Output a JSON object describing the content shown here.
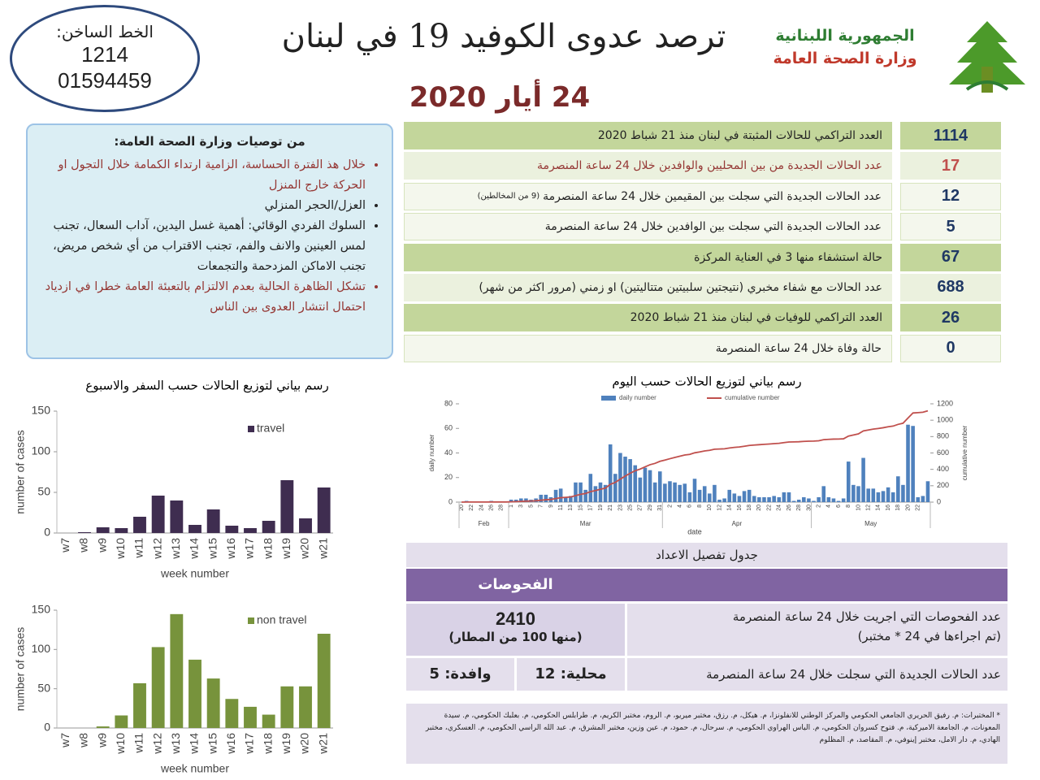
{
  "header": {
    "hotline_label": "الخط الساخن:",
    "hotline_numbers": [
      "1214",
      "01594459"
    ],
    "title": "ترصد عدوى الكوفيد 19 في لبنان",
    "date": "24 أيار 2020",
    "logo_lines": [
      "الجمهورية اللبنانية",
      "وزارة الصحة العامة"
    ]
  },
  "recommendations": {
    "title": "من توصيات وزارة الصحة العامة:",
    "items": [
      "خلال هذ الفترة الحساسة، الزامية ارتداء الكمامة خلال التجول او الحركة خارج المنزل",
      "العزل/الحجر المنزلي",
      "السلوك الفردي الوقائي: أهمية غسل اليدين، آداب السعال، تجنب لمس العينين والانف والفم، تجنب الاقتراب من أي شخص مريض، تجنب الاماكن المزدحمة والتجمعات",
      "تشكل الظاهرة الحالية بعدم الالتزام بالتعبئة العامة خطرا في ازدياد احتمال انتشار العدوى بين الناس"
    ]
  },
  "stats": [
    {
      "value": 1114,
      "label": "العدد التراكمي للحالات المثبتة في لبنان منذ 21 شباط 2020"
    },
    {
      "value": 17,
      "label": "عدد الحالات الجديدة من بين المحليين والوافدين خلال 24 ساعة المنصرمة"
    },
    {
      "value": 12,
      "label": "عدد الحالات الجديدة التي سجلت بين المقيمين خلال 24 ساعة المنصرمة",
      "note": "(9 من المخالطين)"
    },
    {
      "value": 5,
      "label": "عدد الحالات الجديدة التي سجلت بين الوافدين خلال 24 ساعة المنصرمة"
    },
    {
      "value": 67,
      "label": "حالة استشفاء منها 3 في العناية المركزة"
    },
    {
      "value": 688,
      "label": "عدد الحالات مع شفاء مخبري (نتيجتين سلبيتين متتاليتين) او زمني (مرور اكثر من شهر)"
    },
    {
      "value": 26,
      "label": "العدد التراكمي للوفيات في لبنان منذ 21 شباط 2020"
    },
    {
      "value": 0,
      "label": "حالة وفاة خلال 24 ساعة المنصرمة"
    }
  ],
  "table": {
    "title": "جدول تفصيل الاعداد",
    "header": "الفحوصات",
    "rows": [
      {
        "label": "عدد الفحوصات التي اجريت خلال 24 ساعة المنصرمة",
        "label_note": "(تم اجراءها في 24 * مختبر)",
        "value": "2410",
        "value_note": "(منها 100 من المطار)"
      },
      {
        "label": "عدد الحالات الجديدة التي سجلت خلال 24 ساعة المنصرمة",
        "local": "محلية: 12",
        "imported": "وافدة: 5"
      }
    ]
  },
  "footnote": "* المختبرات: م. رفيق الحريري الجامعي الحكومي والمركز الوطني للانفلونزا، م. هيكل، م. رزق، مختبر ميريو، م. الروم، مختبر الكريم، م. طرابلس الحكومي، م. بعلبك الحكومي، م. سيدة المعونات، م. الجامعة الاميركية، م. فتوح كسروان الحكومي، م. الياس الهراوي الحكومي، م. سرحال، م. حمود، م. عين وزين، مختبر المشرق، م. عبد الله الراسي الحكومي، م. العسكري، مختبر الهادي، م. دار الامل، مختبر إينوفي، م. المقاصد، م. المظلوم",
  "chart_data": [
    {
      "type": "bar",
      "title": "رسم بياني لتوزيع الحالات حسب السفر والاسبوع",
      "x_label": "week number",
      "y_label": "number of cases",
      "categories": [
        "w7",
        "w8",
        "w9",
        "w10",
        "w11",
        "w12",
        "w13",
        "w14",
        "w15",
        "w16",
        "w17",
        "w18",
        "w19",
        "w20",
        "w21"
      ],
      "series": [
        {
          "name": "travel",
          "color": "#3f2d50",
          "values": [
            0,
            1,
            7,
            6,
            20,
            46,
            40,
            10,
            29,
            9,
            6,
            15,
            65,
            18,
            56
          ]
        }
      ],
      "ylim": [
        0,
        150
      ],
      "yticks": [
        0,
        50,
        100,
        150
      ],
      "grid": false
    },
    {
      "type": "bar",
      "x_label": "week number",
      "y_label": "number of cases",
      "categories": [
        "w7",
        "w8",
        "w9",
        "w10",
        "w11",
        "w12",
        "w13",
        "w14",
        "w15",
        "w16",
        "w17",
        "w18",
        "w19",
        "w20",
        "w21"
      ],
      "series": [
        {
          "name": "non travel",
          "color": "#77933c",
          "values": [
            0,
            0,
            2,
            16,
            57,
            103,
            145,
            87,
            63,
            37,
            27,
            17,
            53,
            53,
            120
          ]
        }
      ],
      "ylim": [
        0,
        150
      ],
      "yticks": [
        0,
        50,
        100,
        150
      ],
      "grid": false
    },
    {
      "type": "bar_line",
      "title": "رسم بياني لتوزيع الحالات حسب اليوم",
      "x_label": "date",
      "y_label": "daily number",
      "y2_label": "cumulative number",
      "months": [
        "Feb",
        "Mar",
        "Apr",
        "May"
      ],
      "categories": [
        "20",
        null,
        "22",
        null,
        "24",
        null,
        "26",
        null,
        "28",
        null,
        "1",
        null,
        "3",
        null,
        "5",
        null,
        "7",
        null,
        "9",
        null,
        "11",
        null,
        "13",
        null,
        "15",
        null,
        "17",
        null,
        "19",
        null,
        "21",
        null,
        "23",
        null,
        "25",
        null,
        "27",
        null,
        "29",
        null,
        "31",
        null,
        "2",
        null,
        "4",
        null,
        "6",
        null,
        "8",
        null,
        "10",
        null,
        "12",
        null,
        "14",
        null,
        "16",
        null,
        "18",
        null,
        "20",
        null,
        "22",
        null,
        "24",
        null,
        "26",
        null,
        "28",
        null,
        "30",
        null,
        "2",
        null,
        "4",
        null,
        "6",
        null,
        "8",
        null,
        "10",
        null,
        "12",
        null,
        "14",
        null,
        "16",
        null,
        "18",
        null,
        "20",
        null,
        "22",
        null,
        null
      ],
      "series": [
        {
          "name": "daily number",
          "color": "#4f81bd",
          "values": [
            0,
            1,
            0,
            0,
            0,
            0,
            1,
            0,
            0,
            0,
            2,
            2,
            3,
            3,
            2,
            3,
            6,
            6,
            4,
            10,
            11,
            4,
            5,
            16,
            16,
            10,
            23,
            13,
            16,
            14,
            47,
            23,
            40,
            37,
            35,
            30,
            20,
            28,
            26,
            16,
            25,
            15,
            17,
            16,
            14,
            15,
            8,
            19,
            10,
            13,
            7,
            14,
            2,
            3,
            10,
            7,
            5,
            9,
            10,
            5,
            4,
            4,
            4,
            5,
            4,
            8,
            8,
            1,
            2,
            4,
            3,
            1,
            4,
            13,
            4,
            3,
            1,
            3,
            33,
            14,
            13,
            36,
            11,
            11,
            8,
            9,
            12,
            8,
            21,
            14,
            63,
            62,
            4,
            5,
            17
          ]
        },
        {
          "name": "cumulative number",
          "color": "#c0504d",
          "axis": "y2",
          "values": [
            0,
            1,
            1,
            1,
            1,
            1,
            2,
            2,
            2,
            2,
            4,
            6,
            9,
            12,
            14,
            17,
            23,
            29,
            33,
            43,
            54,
            58,
            63,
            79,
            95,
            105,
            128,
            141,
            157,
            171,
            218,
            241,
            281,
            318,
            353,
            383,
            403,
            431,
            457,
            473,
            498,
            513,
            530,
            546,
            560,
            575,
            583,
            602,
            612,
            625,
            632,
            646,
            648,
            651,
            661,
            668,
            673,
            682,
            692,
            697,
            701,
            705,
            709,
            714,
            718,
            726,
            734,
            735,
            737,
            741,
            744,
            745,
            749,
            762,
            766,
            769,
            770,
            773,
            806,
            820,
            833,
            869,
            880,
            891,
            899,
            908,
            920,
            928,
            949,
            963,
            1026,
            1088,
            1092,
            1097,
            1114
          ]
        }
      ],
      "ylim": [
        0,
        80
      ],
      "yticks": [
        0,
        20,
        40,
        60,
        80
      ],
      "y2lim": [
        0,
        1200
      ],
      "y2ticks": [
        0,
        200,
        400,
        600,
        800,
        1000,
        1200
      ],
      "grid": false
    }
  ]
}
